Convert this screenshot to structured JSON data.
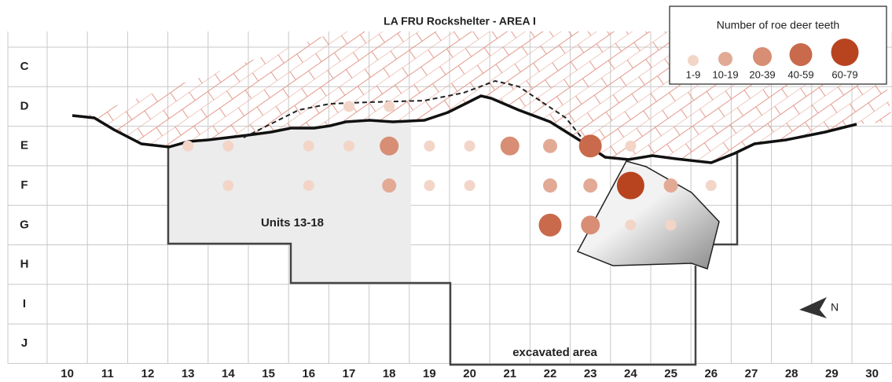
{
  "title": "LA FRU Rockshelter - AREA I",
  "rows": [
    "C",
    "D",
    "E",
    "F",
    "G",
    "H",
    "I",
    "J"
  ],
  "columns": [
    "10",
    "11",
    "12",
    "13",
    "14",
    "15",
    "16",
    "17",
    "18",
    "19",
    "20",
    "21",
    "22",
    "23",
    "24",
    "25",
    "26",
    "27",
    "28",
    "29",
    "30"
  ],
  "labels": {
    "units": "Units 13-18",
    "excavated": "excavated area",
    "north": "N"
  },
  "legend": {
    "title": "Number of roe deer teeth",
    "classes": [
      {
        "label": "1-9",
        "color": "#f3d5c8"
      },
      {
        "label": "10-19",
        "color": "#e2aa95"
      },
      {
        "label": "20-39",
        "color": "#d78e74"
      },
      {
        "label": "40-59",
        "color": "#c86a4b"
      },
      {
        "label": "60-79",
        "color": "#b8441f"
      }
    ]
  },
  "finds": [
    {
      "column": "17",
      "row": "D",
      "class": "1-9"
    },
    {
      "column": "18",
      "row": "D",
      "class": "1-9"
    },
    {
      "column": "13",
      "row": "E",
      "class": "1-9"
    },
    {
      "column": "14",
      "row": "E",
      "class": "1-9"
    },
    {
      "column": "16",
      "row": "E",
      "class": "1-9"
    },
    {
      "column": "17",
      "row": "E",
      "class": "1-9"
    },
    {
      "column": "18",
      "row": "E",
      "class": "20-39"
    },
    {
      "column": "19",
      "row": "E",
      "class": "1-9"
    },
    {
      "column": "20",
      "row": "E",
      "class": "1-9"
    },
    {
      "column": "21",
      "row": "E",
      "class": "20-39"
    },
    {
      "column": "22",
      "row": "E",
      "class": "10-19"
    },
    {
      "column": "23",
      "row": "E",
      "class": "40-59"
    },
    {
      "column": "24",
      "row": "E",
      "class": "1-9"
    },
    {
      "column": "14",
      "row": "F",
      "class": "1-9"
    },
    {
      "column": "16",
      "row": "F",
      "class": "1-9"
    },
    {
      "column": "18",
      "row": "F",
      "class": "10-19"
    },
    {
      "column": "19",
      "row": "F",
      "class": "1-9"
    },
    {
      "column": "20",
      "row": "F",
      "class": "1-9"
    },
    {
      "column": "22",
      "row": "F",
      "class": "10-19"
    },
    {
      "column": "23",
      "row": "F",
      "class": "10-19"
    },
    {
      "column": "24",
      "row": "F",
      "class": "60-79"
    },
    {
      "column": "25",
      "row": "F",
      "class": "10-19"
    },
    {
      "column": "26",
      "row": "F",
      "class": "1-9"
    },
    {
      "column": "22",
      "row": "G",
      "class": "40-59"
    },
    {
      "column": "23",
      "row": "G",
      "class": "20-39"
    },
    {
      "column": "24",
      "row": "G",
      "class": "1-9"
    },
    {
      "column": "25",
      "row": "G",
      "class": "1-9"
    }
  ]
}
